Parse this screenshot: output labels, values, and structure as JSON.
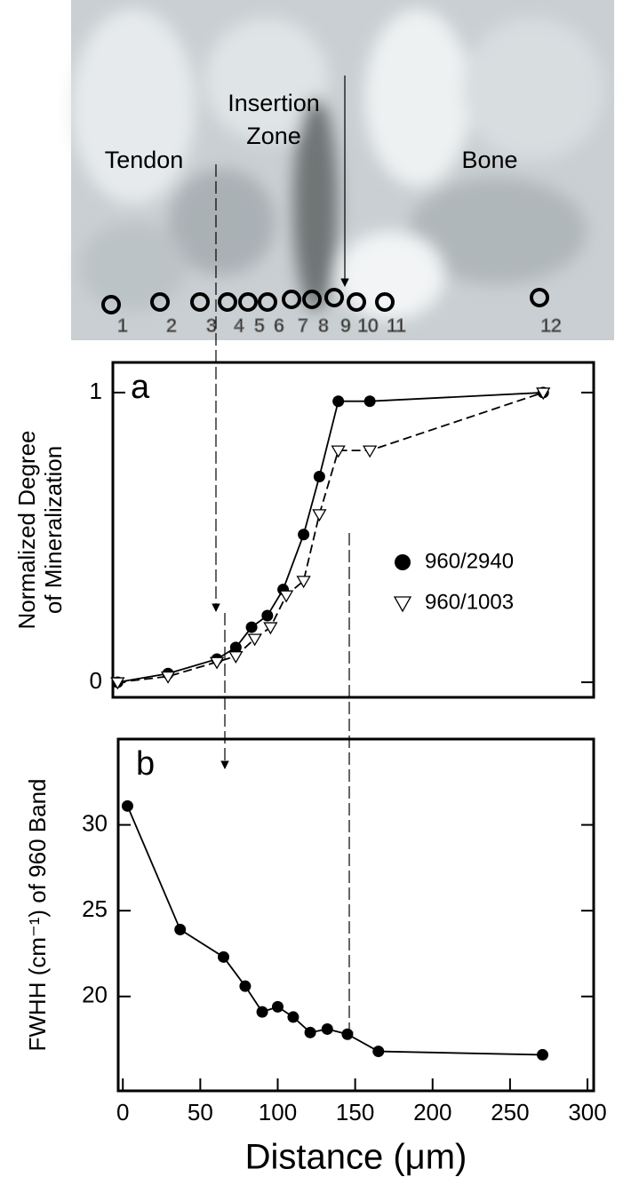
{
  "photo": {
    "labels": [
      "Tendon",
      "Insertion",
      "Zone",
      "Bone"
    ],
    "points": [
      "1",
      "2",
      "3",
      "4",
      "5",
      "6",
      "7",
      "8",
      "9",
      "10",
      "11",
      "12"
    ]
  },
  "chart_data": [
    {
      "type": "line",
      "panel": "a",
      "ylabel": [
        "Normalized Degree",
        "of Mineralization"
      ],
      "xlim": [
        -3,
        302
      ],
      "ylim": [
        -0.052,
        1.104
      ],
      "yticks": [
        0,
        1
      ],
      "legend": "right",
      "series": [
        {
          "name": "960/2940",
          "color": "#000000",
          "marker": "circle",
          "linestyle": "solid",
          "x": [
            0,
            32,
            63,
            75,
            85,
            95,
            105,
            118,
            128,
            140,
            160,
            270
          ],
          "values": [
            0,
            0.03,
            0.08,
            0.12,
            0.19,
            0.23,
            0.32,
            0.51,
            0.71,
            0.97,
            0.97,
            1.0
          ]
        },
        {
          "name": "960/1003",
          "color": "#000000",
          "marker": "triangle",
          "linestyle": "dashed",
          "x": [
            0,
            32,
            63,
            75,
            87,
            97,
            107,
            118,
            128,
            140,
            160,
            270
          ],
          "values": [
            0,
            0.02,
            0.07,
            0.09,
            0.15,
            0.19,
            0.3,
            0.35,
            0.58,
            0.8,
            0.8,
            1.0
          ]
        }
      ]
    },
    {
      "type": "line",
      "panel": "b",
      "ylabel": [
        "FWHH (cm⁻¹) of 960 Band"
      ],
      "xlabel": "Distance (μm)",
      "xlim": [
        -3,
        304
      ],
      "ylim": [
        14.5,
        35
      ],
      "xticks": [
        0,
        50,
        100,
        150,
        200,
        250,
        300
      ],
      "yticks": [
        20,
        25,
        30
      ],
      "series": [
        {
          "color": "#000000",
          "marker": "circle",
          "linestyle": "solid",
          "x": [
            3,
            37,
            65,
            79,
            90,
            100,
            110,
            121,
            132,
            145,
            165,
            271
          ],
          "values": [
            31.1,
            23.9,
            22.3,
            20.6,
            19.1,
            19.4,
            18.8,
            17.9,
            18.1,
            17.8,
            16.8,
            16.6
          ]
        }
      ]
    }
  ]
}
